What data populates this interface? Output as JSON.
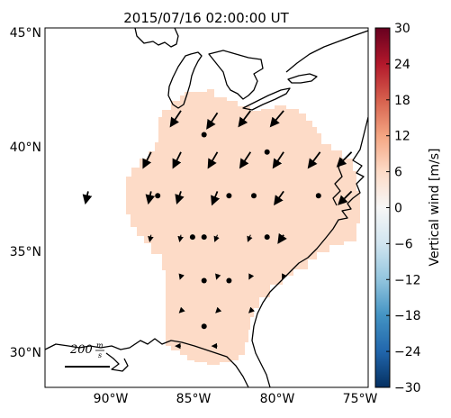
{
  "title": "2015/07/16 02:00:00 UT",
  "lat_labels": [
    "45°N",
    "40°N",
    "35°N",
    "30°N"
  ],
  "lon_labels": [
    "90°W",
    "85°W",
    "80°W",
    "75°W"
  ],
  "colorbar": {
    "label": "Vertical wind [m/s]",
    "ticks": [
      "30",
      "24",
      "18",
      "12",
      "6",
      "0",
      "−6",
      "−12",
      "−18",
      "−24",
      "−30"
    ],
    "range": [
      -30,
      30
    ],
    "colormap": "RdBu_r",
    "colors": [
      "#053061",
      "#2166ac",
      "#4393c3",
      "#92c5de",
      "#d1e5f0",
      "#f7f7f7",
      "#fddbc7",
      "#f4a582",
      "#d6604d",
      "#b2182b",
      "#67001f"
    ]
  },
  "field_color": "#fddbc7",
  "reference_vector": {
    "value": "200",
    "unit_numerator": "m",
    "unit_denominator": "s"
  },
  "map_extent": {
    "lon": [
      -94,
      -74.5
    ],
    "lat": [
      28.5,
      45
    ]
  },
  "wind_vectors": [
    {
      "lon": -85.8,
      "lat": 41.2,
      "u": -40,
      "v": -60
    },
    {
      "lon": -83.6,
      "lat": 41.1,
      "u": -40,
      "v": -60
    },
    {
      "lon": -81.6,
      "lat": 41.2,
      "u": -45,
      "v": -60
    },
    {
      "lon": -79.6,
      "lat": 41.2,
      "u": -50,
      "v": -60
    },
    {
      "lon": -87.6,
      "lat": 39.3,
      "u": -30,
      "v": -60
    },
    {
      "lon": -85.8,
      "lat": 39.3,
      "u": -30,
      "v": -60
    },
    {
      "lon": -83.6,
      "lat": 39.3,
      "u": -35,
      "v": -60
    },
    {
      "lon": -81.6,
      "lat": 39.3,
      "u": -40,
      "v": -60
    },
    {
      "lon": -79.6,
      "lat": 39.3,
      "u": -40,
      "v": -60
    },
    {
      "lon": -77.4,
      "lat": 39.3,
      "u": -45,
      "v": -60
    },
    {
      "lon": -75.5,
      "lat": 39.3,
      "u": -55,
      "v": -55
    },
    {
      "lon": -91.4,
      "lat": 37.5,
      "u": -10,
      "v": -45
    },
    {
      "lon": -87.6,
      "lat": 37.5,
      "u": -10,
      "v": -45
    },
    {
      "lon": -85.8,
      "lat": 37.5,
      "u": -15,
      "v": -45
    },
    {
      "lon": -83.6,
      "lat": 37.5,
      "u": -20,
      "v": -50
    },
    {
      "lon": -79.6,
      "lat": 37.5,
      "u": -35,
      "v": -50
    },
    {
      "lon": -75.5,
      "lat": 37.5,
      "u": -50,
      "v": -50
    },
    {
      "lon": -87.6,
      "lat": 35.5,
      "u": -5,
      "v": -25
    },
    {
      "lon": -85.8,
      "lat": 35.5,
      "u": -5,
      "v": -25
    },
    {
      "lon": -83.6,
      "lat": 35.5,
      "u": -10,
      "v": -25
    },
    {
      "lon": -81.6,
      "lat": 35.5,
      "u": -10,
      "v": -25
    },
    {
      "lon": -79.6,
      "lat": 35.5,
      "u": -20,
      "v": -30
    },
    {
      "lon": -85.8,
      "lat": 33.6,
      "u": -3,
      "v": -10
    },
    {
      "lon": -83.6,
      "lat": 33.6,
      "u": -3,
      "v": -10
    },
    {
      "lon": -81.6,
      "lat": 33.6,
      "u": -5,
      "v": -10
    },
    {
      "lon": -79.6,
      "lat": 33.6,
      "u": -5,
      "v": -10
    },
    {
      "lon": -85.8,
      "lat": 32.0,
      "u": -5,
      "v": -5
    },
    {
      "lon": -83.6,
      "lat": 32.0,
      "u": -5,
      "v": -5
    },
    {
      "lon": -81.6,
      "lat": 32.0,
      "u": -5,
      "v": -5
    },
    {
      "lon": -85.8,
      "lat": 30.4,
      "u": -20,
      "v": 0
    },
    {
      "lon": -83.6,
      "lat": 30.4,
      "u": -20,
      "v": 0
    }
  ],
  "station_points": [
    {
      "lon": -84.4,
      "lat": 40.1
    },
    {
      "lon": -80.6,
      "lat": 39.3
    },
    {
      "lon": -87.2,
      "lat": 37.3
    },
    {
      "lon": -82.9,
      "lat": 37.3
    },
    {
      "lon": -81.4,
      "lat": 37.3
    },
    {
      "lon": -77.5,
      "lat": 37.3
    },
    {
      "lon": -85.1,
      "lat": 35.4
    },
    {
      "lon": -84.4,
      "lat": 35.4
    },
    {
      "lon": -80.6,
      "lat": 35.4
    },
    {
      "lon": -84.4,
      "lat": 33.4
    },
    {
      "lon": -82.9,
      "lat": 33.4
    },
    {
      "lon": -84.4,
      "lat": 31.3
    }
  ]
}
